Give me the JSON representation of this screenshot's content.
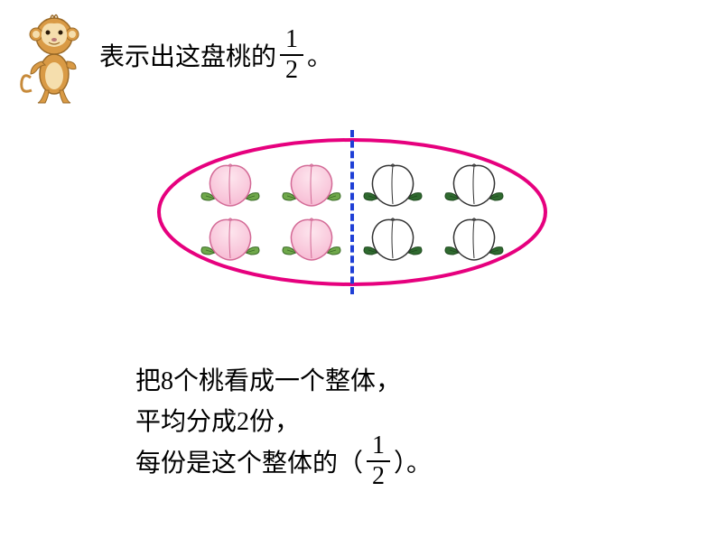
{
  "title": {
    "prefix": "表示出这盘桃的",
    "fraction": {
      "numerator": "1",
      "denominator": "2"
    },
    "suffix": "。"
  },
  "plate": {
    "ellipse_stroke": "#e6007e",
    "ellipse_stroke_width": 4,
    "ellipse_fill": "#ffffff",
    "divider_color": "#1f3fd6",
    "left_peach": {
      "fill_top": "#fde6ee",
      "fill_mid": "#f7bcd4",
      "stroke": "#d36a96",
      "leaf_fill": "#6fa84a",
      "leaf_stroke": "#3a6b27",
      "count": 4
    },
    "right_peach": {
      "fill": "#ffffff",
      "stroke": "#333333",
      "leaf_fill": "#2f6a2f",
      "leaf_stroke": "#1f4a1f",
      "count": 4
    }
  },
  "explanation": {
    "line1": "把8个桃看成一个整体，",
    "line2": "平均分成2份，",
    "line3_prefix": "每份是这个整体的（",
    "line3_fraction": {
      "numerator": "1",
      "denominator": "2"
    },
    "line3_suffix": "）。"
  },
  "style": {
    "bg": "#ffffff",
    "text_color": "#000000",
    "title_fontsize": 28,
    "body_fontsize": 28
  }
}
